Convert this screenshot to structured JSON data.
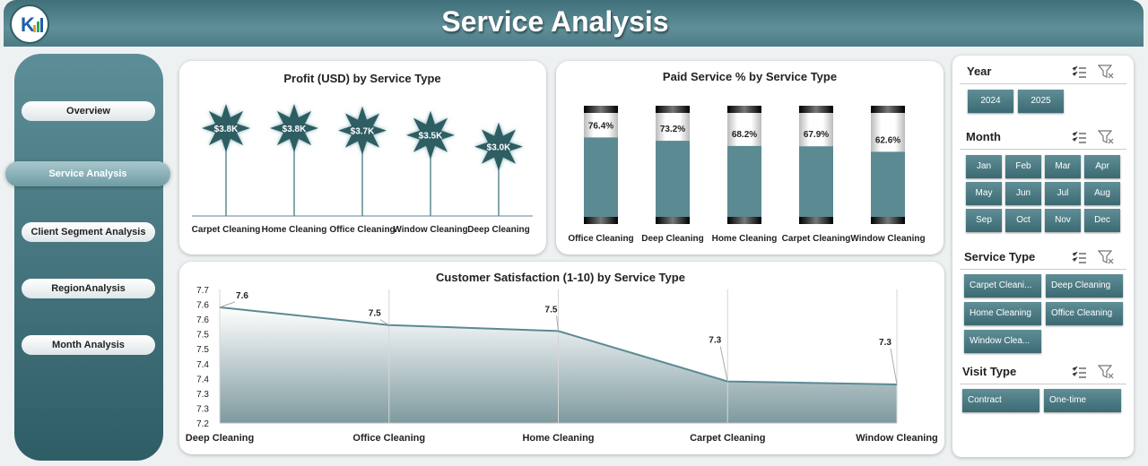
{
  "header": {
    "title": "Service Analysis"
  },
  "nav": [
    "Overview",
    "Service Analysis",
    "Client Segment Analysis",
    "RegionAnalysis",
    "Month Analysis"
  ],
  "filters": [
    {
      "title": "Year",
      "options": [
        "2024",
        "2025"
      ]
    },
    {
      "title": "Month",
      "options": [
        "Jan",
        "Feb",
        "Mar",
        "Apr",
        "May",
        "Jun",
        "Jul",
        "Aug",
        "Sep",
        "Oct",
        "Nov",
        "Dec"
      ]
    },
    {
      "title": "Service Type",
      "options": [
        "Carpet Cleani...",
        "Deep Cleaning",
        "Home Cleaning",
        "Office Cleaning",
        "Window Clea..."
      ]
    },
    {
      "title": "Visit Type",
      "options": [
        "Contract",
        "One-time"
      ]
    }
  ],
  "chart_data": [
    {
      "type": "lollipop",
      "title": "Profit (USD) by Service Type",
      "categories": [
        "Carpet Cleaning",
        "Home Cleaning",
        "Office Cleaning",
        "Window Cleaning",
        "Deep Cleaning"
      ],
      "values": [
        3800,
        3800,
        3700,
        3500,
        3000
      ],
      "value_labels": [
        "$3.8K",
        "$3.8K",
        "$3.7K",
        "$3.5K",
        "$3.0K"
      ],
      "color": "#2f5d62"
    },
    {
      "type": "bar",
      "title": "Paid Service % by Service Type",
      "categories": [
        "Office Cleaning",
        "Deep Cleaning",
        "Home Cleaning",
        "Carpet Cleaning",
        "Window Cleaning"
      ],
      "values": [
        76.4,
        73.2,
        68.2,
        67.9,
        62.6
      ],
      "value_labels": [
        "76.4%",
        "73.2%",
        "68.2%",
        "67.9%",
        "62.6%"
      ],
      "ylim": [
        0,
        100
      ],
      "color": "#5b8a93"
    },
    {
      "type": "area",
      "title": "Customer Satisfaction (1-10) by Service Type",
      "categories": [
        "Deep Cleaning",
        "Office Cleaning",
        "Home Cleaning",
        "Carpet Cleaning",
        "Window Cleaning"
      ],
      "values": [
        7.59,
        7.53,
        7.51,
        7.34,
        7.33
      ],
      "value_labels": [
        "7.6",
        "7.5",
        "7.5",
        "7.3",
        "7.3"
      ],
      "ylim": [
        7.2,
        7.65
      ],
      "yticks": [
        7.2,
        {
          "value": 7.25,
          "label": "7.3"
        },
        7.3,
        {
          "value": 7.35,
          "label": "7.4"
        },
        7.4,
        {
          "value": 7.45,
          "label": "7.5"
        },
        7.5,
        {
          "value": 7.55,
          "label": "7.6"
        },
        7.6,
        {
          "value": 7.65,
          "label": "7.7"
        }
      ],
      "grid": true,
      "color": "#5b8a93"
    }
  ]
}
